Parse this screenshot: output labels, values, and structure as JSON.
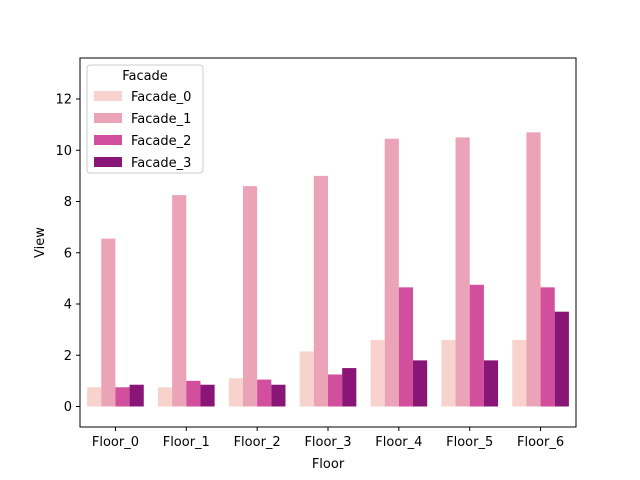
{
  "chart_data": {
    "type": "bar",
    "title": "",
    "xlabel": "Floor",
    "ylabel": "View",
    "categories": [
      "Floor_0",
      "Floor_1",
      "Floor_2",
      "Floor_3",
      "Floor_4",
      "Floor_5",
      "Floor_6"
    ],
    "ylim": [
      -0.8,
      13.6
    ],
    "yticks": [
      0,
      2,
      4,
      6,
      8,
      10,
      12
    ],
    "grid": false,
    "legend": {
      "title": "Facade",
      "placement": "upper-left"
    },
    "series": [
      {
        "name": "Facade_0",
        "color": "#f8d3cd",
        "values": [
          0.75,
          0.75,
          1.1,
          2.15,
          2.6,
          2.6,
          2.6
        ]
      },
      {
        "name": "Facade_1",
        "color": "#eba3b8",
        "values": [
          6.55,
          8.25,
          8.6,
          9.0,
          10.45,
          10.5,
          10.7
        ]
      },
      {
        "name": "Facade_2",
        "color": "#d14f9d",
        "values": [
          0.75,
          1.0,
          1.05,
          1.25,
          4.65,
          4.75,
          4.65
        ]
      },
      {
        "name": "Facade_3",
        "color": "#891676",
        "values": [
          0.85,
          0.85,
          0.85,
          1.5,
          1.8,
          1.8,
          3.7
        ]
      }
    ]
  }
}
